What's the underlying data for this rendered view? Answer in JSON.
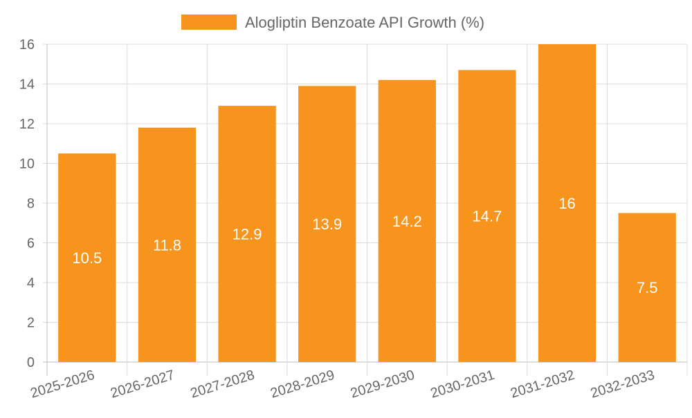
{
  "chart_data": {
    "type": "bar",
    "categories": [
      "2025-2026",
      "2026-2027",
      "2027-2028",
      "2028-2029",
      "2029-2030",
      "2030-2031",
      "2031-2032",
      "2032-2033"
    ],
    "series": [
      {
        "name": "Alogliptin Benzoate API Growth (%)",
        "values": [
          10.5,
          11.8,
          12.9,
          13.9,
          14.2,
          14.7,
          16,
          7.5
        ],
        "color": "#f7941d"
      }
    ],
    "value_labels": [
      "10.5",
      "11.8",
      "12.9",
      "13.9",
      "14.2",
      "14.7",
      "16",
      "7.5"
    ],
    "y_ticks": [
      "0",
      "2",
      "4",
      "6",
      "8",
      "10",
      "12",
      "14",
      "16"
    ],
    "ylim": [
      0,
      16
    ],
    "grid": true,
    "legend_position": "top-center"
  }
}
